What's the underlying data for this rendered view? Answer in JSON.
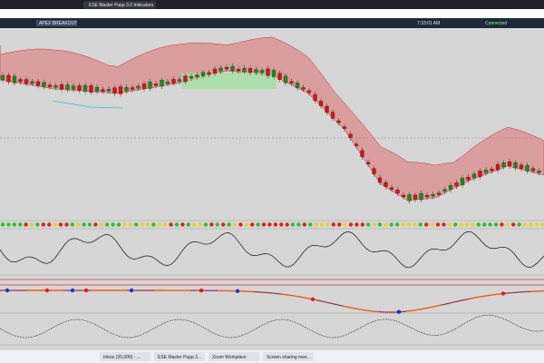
{
  "browser": {
    "tab_title": "ESE Master Pupp 3.0 Indicators"
  },
  "toolbar": {
    "button": "APEX BREAKOUT",
    "time": "7:33:01 AM",
    "status": "Connected"
  },
  "taskbar": {
    "items": [
      "Inbox (35,000) - ...",
      "ESE Master Pupp 3...",
      "Zoom Workplace",
      "Screen sharing mee..."
    ]
  }
}
